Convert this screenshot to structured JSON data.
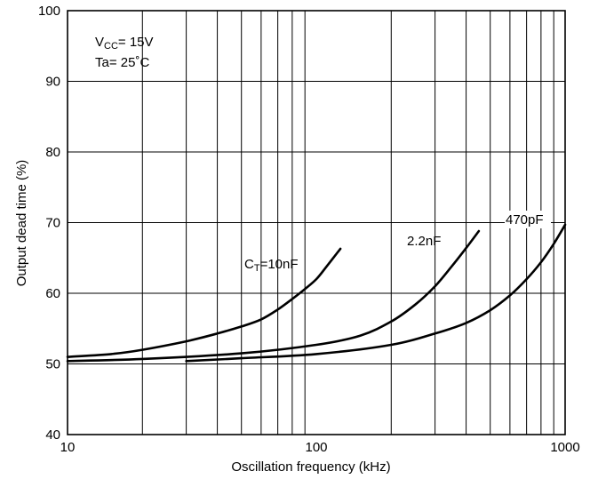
{
  "chart_data": {
    "type": "line",
    "xscale": "log",
    "xlim": [
      10,
      1000
    ],
    "ylim": [
      40,
      100
    ],
    "grid": true,
    "xlabel": "Oscillation frequency (kHz)",
    "ylabel": "Output dead time (%)",
    "x_ticks": [
      10,
      100,
      1000
    ],
    "x_tick_labels": [
      "10",
      "100",
      "1000"
    ],
    "y_ticks": [
      40,
      50,
      60,
      70,
      80,
      90,
      100
    ],
    "y_tick_labels": [
      "40",
      "50",
      "60",
      "70",
      "80",
      "90",
      "100"
    ],
    "conditions": {
      "vcc_symbol": "V",
      "vcc_subscript": "CC",
      "vcc_value": "= 15V",
      "ta_text": "Ta= 25˚C"
    },
    "series": [
      {
        "name": "CT=10nF",
        "label_symbol": "C",
        "label_subscript": "T",
        "label_value": "=10nF",
        "x": [
          10,
          15,
          20,
          30,
          40,
          50,
          60,
          70,
          80,
          90,
          100,
          110,
          125
        ],
        "y": [
          51,
          51.4,
          52,
          53.2,
          54.3,
          55.3,
          56.3,
          57.7,
          59.2,
          60.6,
          62,
          63.8,
          66.3
        ]
      },
      {
        "name": "2.2nF",
        "label_value": "2.2nF",
        "x": [
          10,
          20,
          50,
          100,
          150,
          200,
          250,
          300,
          350,
          400,
          450
        ],
        "y": [
          50.4,
          50.7,
          51.5,
          52.7,
          54,
          56,
          58.4,
          61,
          63.8,
          66.4,
          68.8
        ]
      },
      {
        "name": "470pF",
        "label_value": "470pF",
        "x": [
          30,
          50,
          100,
          200,
          300,
          400,
          500,
          600,
          700,
          800,
          900,
          1000
        ],
        "y": [
          50.4,
          50.8,
          51.4,
          52.7,
          54.3,
          55.8,
          57.6,
          59.7,
          62,
          64.4,
          67,
          69.7
        ]
      }
    ]
  }
}
